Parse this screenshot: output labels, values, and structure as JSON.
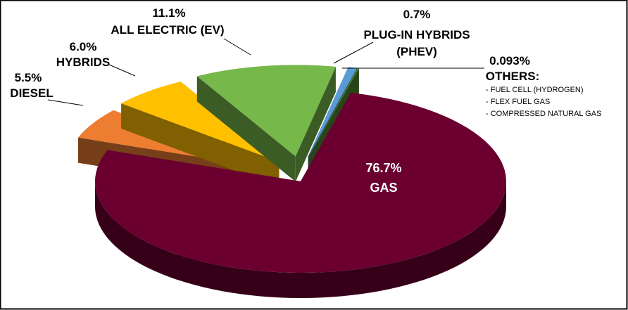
{
  "chart_data": {
    "type": "pie3d",
    "categories": [
      "DIESEL",
      "HYBRIDS",
      "ALL ELECTRIC (EV)",
      "PLUG-IN HYBRIDS (PHEV)",
      "OTHERS:",
      "GAS"
    ],
    "values": [
      5.5,
      6.0,
      11.1,
      0.7,
      0.093,
      76.7
    ],
    "value_labels": [
      "5.5%",
      "6.0%",
      "11.1%",
      "0.7%",
      "0.093%",
      "76.7%"
    ],
    "colors": [
      "#ed7d31",
      "#ffc000",
      "#77b84a",
      "#5b9bd5",
      "#4f8a2e",
      "#6b0030"
    ],
    "others_items": [
      "- FUEL CELL (HYDROGEN)",
      "- FLEX FUEL GAS",
      "- COMPRESSED NATURAL GAS"
    ]
  }
}
